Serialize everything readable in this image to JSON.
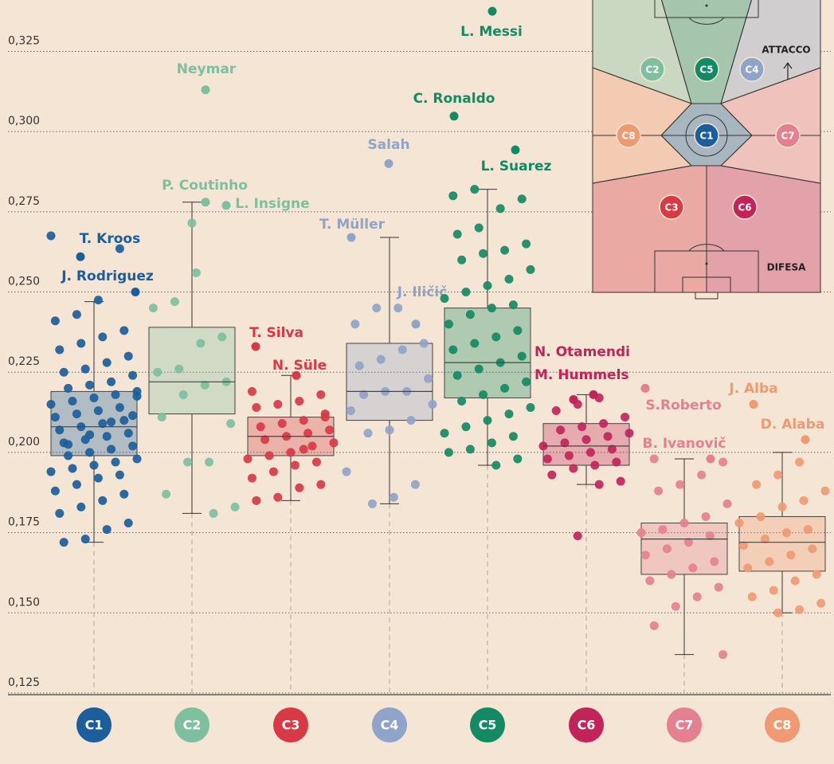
{
  "chart_data": {
    "type": "box",
    "ylim": [
      0.1245,
      0.341
    ],
    "yticks": [
      {
        "value": 0.125,
        "label": "0,125"
      },
      {
        "value": 0.15,
        "label": "0,150"
      },
      {
        "value": 0.175,
        "label": "0,175"
      },
      {
        "value": 0.2,
        "label": "0,200"
      },
      {
        "value": 0.225,
        "label": "0,225"
      },
      {
        "value": 0.25,
        "label": "0,250"
      },
      {
        "value": 0.275,
        "label": "0,275"
      },
      {
        "value": 0.3,
        "label": "0,300"
      },
      {
        "value": 0.325,
        "label": "0,325"
      }
    ],
    "grid": true,
    "series": [
      {
        "name": "C1",
        "color": "#1b5e9b",
        "min": 0.172,
        "q1": 0.199,
        "median": 0.208,
        "q3": 0.219,
        "max": 0.247,
        "points": [
          0.2675,
          0.2635,
          0.2475,
          0.243,
          0.241,
          0.238,
          0.236,
          0.234,
          0.232,
          0.23,
          0.228,
          0.226,
          0.225,
          0.224,
          0.222,
          0.221,
          0.22,
          0.219,
          0.218,
          0.217,
          0.216,
          0.215,
          0.214,
          0.213,
          0.212,
          0.211,
          0.21,
          0.209,
          0.208,
          0.207,
          0.206,
          0.205,
          0.204,
          0.203,
          0.202,
          0.201,
          0.2,
          0.199,
          0.198,
          0.197,
          0.196,
          0.195,
          0.194,
          0.193,
          0.192,
          0.19,
          0.188,
          0.187,
          0.185,
          0.183,
          0.181,
          0.178,
          0.176,
          0.173,
          0.172,
          0.2115,
          0.2095,
          0.2055,
          0.2025,
          0.2175
        ],
        "labelled": [
          {
            "name": "T. Kroos",
            "value": 0.261
          },
          {
            "name": "J. Rodriguez",
            "value": 0.25
          }
        ]
      },
      {
        "name": "C2",
        "color": "#7dbf9f",
        "min": 0.181,
        "q1": 0.212,
        "median": 0.222,
        "q3": 0.239,
        "max": 0.278,
        "points": [
          0.256,
          0.247,
          0.245,
          0.236,
          0.234,
          0.226,
          0.225,
          0.222,
          0.221,
          0.218,
          0.211,
          0.209,
          0.197,
          0.197,
          0.187,
          0.183,
          0.181,
          0.2715
        ],
        "labelled": [
          {
            "name": "Neymar",
            "value": 0.313
          },
          {
            "name": "P. Coutinho",
            "value": 0.278
          },
          {
            "name": "L. Insigne",
            "value": 0.277
          }
        ]
      },
      {
        "name": "C3",
        "color": "#d83a45",
        "min": 0.185,
        "q1": 0.199,
        "median": 0.205,
        "q3": 0.211,
        "max": 0.224,
        "points": [
          0.219,
          0.218,
          0.216,
          0.215,
          0.214,
          0.212,
          0.21,
          0.209,
          0.208,
          0.207,
          0.206,
          0.205,
          0.204,
          0.203,
          0.202,
          0.2,
          0.199,
          0.198,
          0.197,
          0.196,
          0.194,
          0.192,
          0.19,
          0.189,
          0.186,
          0.185,
          0.211,
          0.201
        ],
        "labelled": [
          {
            "name": "T. Silva",
            "value": 0.233
          },
          {
            "name": "N. Süle",
            "value": 0.224
          }
        ]
      },
      {
        "name": "C4",
        "color": "#8fa4c9",
        "min": 0.184,
        "q1": 0.21,
        "median": 0.219,
        "q3": 0.234,
        "max": 0.267,
        "points": [
          0.245,
          0.245,
          0.24,
          0.234,
          0.232,
          0.229,
          0.227,
          0.223,
          0.219,
          0.219,
          0.218,
          0.215,
          0.21,
          0.207,
          0.206,
          0.194,
          0.19,
          0.186,
          0.184,
          0.213
        ],
        "labelled": [
          {
            "name": "Salah",
            "value": 0.29
          },
          {
            "name": "T. Müller",
            "value": 0.267
          },
          {
            "name": "J. Iličič",
            "value": 0.24
          }
        ]
      },
      {
        "name": "C5",
        "color": "#138a63",
        "min": 0.196,
        "q1": 0.217,
        "median": 0.228,
        "q3": 0.245,
        "max": 0.282,
        "points": [
          0.28,
          0.279,
          0.276,
          0.27,
          0.268,
          0.265,
          0.263,
          0.262,
          0.26,
          0.257,
          0.254,
          0.252,
          0.25,
          0.248,
          0.246,
          0.245,
          0.243,
          0.24,
          0.238,
          0.236,
          0.234,
          0.232,
          0.23,
          0.228,
          0.226,
          0.224,
          0.222,
          0.22,
          0.218,
          0.216,
          0.214,
          0.212,
          0.21,
          0.208,
          0.206,
          0.205,
          0.203,
          0.201,
          0.2,
          0.198,
          0.196,
          0.282
        ],
        "labelled": [
          {
            "name": "L. Messi",
            "value": 0.3375
          },
          {
            "name": "C. Ronaldo",
            "value": 0.3048
          },
          {
            "name": "L. Suarez",
            "value": 0.2943
          }
        ]
      },
      {
        "name": "C6",
        "color": "#c2245a",
        "min": 0.19,
        "q1": 0.196,
        "median": 0.202,
        "q3": 0.209,
        "max": 0.218,
        "points": [
          0.217,
          0.215,
          0.213,
          0.211,
          0.209,
          0.208,
          0.207,
          0.206,
          0.205,
          0.204,
          0.203,
          0.202,
          0.201,
          0.2,
          0.199,
          0.198,
          0.197,
          0.196,
          0.195,
          0.193,
          0.191,
          0.19,
          0.174
        ],
        "labelled": [
          {
            "name": "N. Otamendi",
            "value": 0.218
          },
          {
            "name": "M. Hummels",
            "value": 0.2165
          }
        ]
      },
      {
        "name": "C7",
        "color": "#e48190",
        "min": 0.137,
        "q1": 0.162,
        "median": 0.173,
        "q3": 0.178,
        "max": 0.198,
        "points": [
          0.198,
          0.197,
          0.193,
          0.19,
          0.188,
          0.184,
          0.18,
          0.178,
          0.176,
          0.175,
          0.174,
          0.172,
          0.17,
          0.168,
          0.166,
          0.164,
          0.162,
          0.16,
          0.158,
          0.155,
          0.152,
          0.146,
          0.137
        ],
        "labelled": [
          {
            "name": "S.Roberto",
            "value": 0.22
          },
          {
            "name": "B. Ivanovič",
            "value": 0.198
          }
        ]
      },
      {
        "name": "C8",
        "color": "#ef9a72",
        "min": 0.15,
        "q1": 0.163,
        "median": 0.172,
        "q3": 0.18,
        "max": 0.2,
        "points": [
          0.197,
          0.193,
          0.19,
          0.188,
          0.185,
          0.183,
          0.18,
          0.178,
          0.176,
          0.175,
          0.173,
          0.171,
          0.17,
          0.168,
          0.166,
          0.164,
          0.162,
          0.16,
          0.157,
          0.155,
          0.153,
          0.151,
          0.15
        ],
        "labelled": [
          {
            "name": "J. Alba",
            "value": 0.215
          },
          {
            "name": "D. Alaba",
            "value": 0.204
          }
        ]
      }
    ],
    "inset": {
      "top_label": "ATTACCO",
      "bottom_label": "DIFESA"
    }
  }
}
